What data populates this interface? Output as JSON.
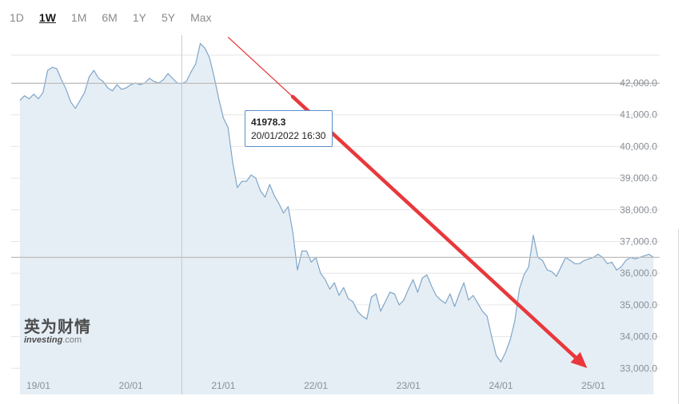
{
  "tabs": [
    {
      "label": "1D",
      "active": false
    },
    {
      "label": "1W",
      "active": true
    },
    {
      "label": "1M",
      "active": false
    },
    {
      "label": "6M",
      "active": false
    },
    {
      "label": "1Y",
      "active": false
    },
    {
      "label": "5Y",
      "active": false
    },
    {
      "label": "Max",
      "active": false
    }
  ],
  "tooltip": {
    "price": "41978.3",
    "datetime": "20/01/2022 16:30"
  },
  "watermark": {
    "chinese": "英为财情",
    "brand": "investing",
    "suffix": ".com"
  },
  "colors": {
    "line": "#7fa6c9",
    "fill": "#e6eef5",
    "arrow": "#e8383b",
    "grid": "#e6e6e6",
    "ref_line": "#bdbdbd"
  },
  "chart_data": {
    "type": "area",
    "ylim": [
      32800,
      43500
    ],
    "y_ticks": [
      33000,
      34000,
      35000,
      36000,
      37000,
      38000,
      39000,
      40000,
      41000,
      42000
    ],
    "y_tick_labels": [
      "33,000.0",
      "34,000.0",
      "35,000.0",
      "36,000.0",
      "37,000.0",
      "38,000.0",
      "39,000.0",
      "40,000.0",
      "41,000.0",
      "42,000.0"
    ],
    "x_ticks": [
      0,
      1,
      2,
      3,
      4,
      5,
      6
    ],
    "x_tick_labels": [
      "19/01",
      "20/01",
      "21/01",
      "22/01",
      "23/01",
      "24/01",
      "25/01"
    ],
    "reference_lines": [
      41990,
      36500
    ],
    "crosshair_x": 1.55,
    "grid": true,
    "series": [
      {
        "x": [
          -0.2,
          -0.15,
          -0.1,
          -0.05,
          0.0,
          0.05,
          0.1,
          0.15,
          0.2,
          0.25,
          0.3,
          0.35,
          0.4,
          0.45,
          0.5,
          0.55,
          0.6,
          0.65,
          0.7,
          0.75,
          0.8,
          0.85,
          0.9,
          0.95,
          1.0,
          1.05,
          1.1,
          1.15,
          1.2,
          1.25,
          1.3,
          1.35,
          1.4,
          1.45,
          1.5,
          1.55,
          1.6,
          1.65,
          1.7,
          1.75,
          1.8,
          1.85,
          1.9,
          1.95,
          2.0,
          2.05,
          2.1,
          2.15,
          2.2,
          2.25,
          2.3,
          2.35,
          2.4,
          2.45,
          2.5,
          2.55,
          2.6,
          2.65,
          2.7,
          2.75,
          2.8,
          2.85,
          2.9,
          2.95,
          3.0,
          3.05,
          3.1,
          3.15,
          3.2,
          3.25,
          3.3,
          3.35,
          3.4,
          3.45,
          3.5,
          3.55,
          3.6,
          3.65,
          3.7,
          3.75,
          3.8,
          3.85,
          3.9,
          3.95,
          4.0,
          4.05,
          4.1,
          4.15,
          4.2,
          4.25,
          4.3,
          4.35,
          4.4,
          4.45,
          4.5,
          4.55,
          4.6,
          4.65,
          4.7,
          4.75,
          4.8,
          4.85,
          4.9,
          4.95,
          5.0,
          5.05,
          5.1,
          5.15,
          5.2,
          5.25,
          5.3,
          5.35,
          5.4,
          5.45,
          5.5,
          5.55,
          5.6,
          5.65,
          5.7,
          5.75,
          5.8,
          5.85,
          5.9,
          5.95,
          6.0,
          6.05,
          6.1,
          6.15,
          6.2,
          6.25,
          6.3,
          6.35,
          6.4,
          6.45,
          6.5,
          6.55,
          6.6,
          6.65
        ],
        "values": [
          41450,
          41600,
          41500,
          41650,
          41500,
          41700,
          42400,
          42500,
          42450,
          42100,
          41800,
          41400,
          41200,
          41450,
          41700,
          42200,
          42400,
          42150,
          42050,
          41850,
          41750,
          41950,
          41800,
          41850,
          41950,
          42000,
          41950,
          42000,
          42150,
          42050,
          42000,
          42100,
          42300,
          42150,
          42000,
          41978,
          42050,
          42350,
          42600,
          43250,
          43100,
          42800,
          42200,
          41500,
          40900,
          40600,
          39500,
          38700,
          38900,
          38900,
          39100,
          39000,
          38600,
          38400,
          38800,
          38450,
          38200,
          37900,
          38100,
          37300,
          36100,
          36700,
          36700,
          36350,
          36500,
          36000,
          35800,
          35500,
          35700,
          35300,
          35550,
          35200,
          35100,
          34800,
          34650,
          34550,
          35250,
          35350,
          34800,
          35100,
          35400,
          35350,
          35000,
          35150,
          35500,
          35800,
          35400,
          35850,
          35950,
          35600,
          35300,
          35150,
          35050,
          35350,
          34950,
          35350,
          35700,
          35150,
          35300,
          35050,
          34800,
          34650,
          34000,
          33400,
          33200,
          33500,
          33900,
          34500,
          35500,
          35950,
          36200,
          37200,
          36500,
          36400,
          36100,
          36050,
          35900,
          36200,
          36500,
          36400,
          36300,
          36300,
          36400,
          36450,
          36500,
          36600,
          36500,
          36300,
          36350,
          36100,
          36200,
          36400,
          36500,
          36450,
          36500,
          36550,
          36600,
          36500
        ],
        "name": ""
      }
    ],
    "annotation_arrow": {
      "from": [
        2.05,
        43450
      ],
      "to": [
        5.5,
        33000
      ]
    }
  }
}
